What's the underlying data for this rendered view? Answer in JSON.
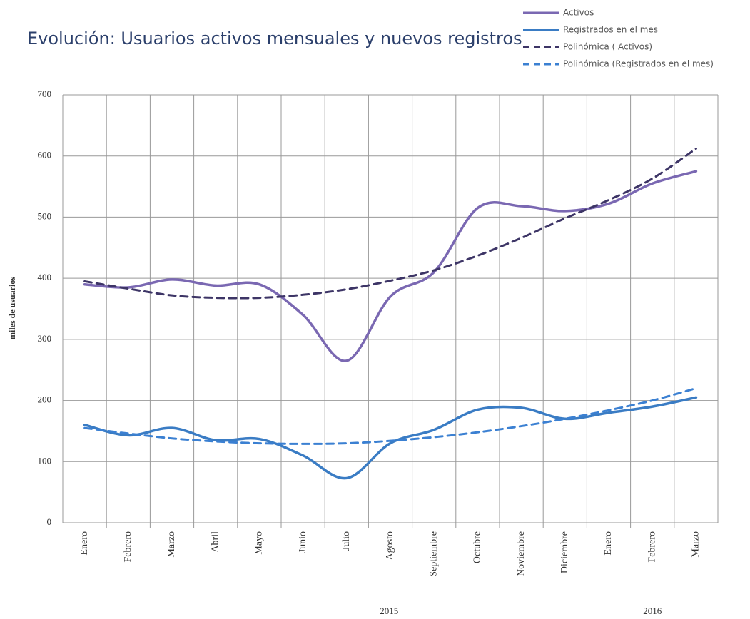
{
  "chart_data": {
    "type": "line",
    "title": "Evolución: Usuarios activos mensuales y nuevos registros",
    "y_label": "miles de usuarios",
    "categories": [
      "Enero",
      "Febrero",
      "Marzo",
      "Abril",
      "Mayo",
      "Junio",
      "Julio",
      "Agosto",
      "Septiembre",
      "Octubre",
      "Noviembre",
      "Diciembre",
      "Enero",
      "Febrero",
      "Marzo"
    ],
    "groups": [
      {
        "label": "2015",
        "count": 12
      },
      {
        "label": "2016",
        "count": 3
      }
    ],
    "ylim": [
      0,
      700
    ],
    "yticks": [
      0,
      100,
      200,
      300,
      400,
      500,
      600,
      700
    ],
    "grid": true,
    "legend": "top-right",
    "series": [
      {
        "name": "Activos",
        "color": "#7a68b2",
        "dash": false,
        "values": [
          390,
          385,
          398,
          388,
          390,
          340,
          265,
          370,
          410,
          515,
          518,
          510,
          522,
          555,
          575
        ]
      },
      {
        "name": "Registrados en el mes",
        "color": "#3a7cc4",
        "dash": false,
        "values": [
          160,
          143,
          155,
          135,
          137,
          110,
          73,
          130,
          152,
          185,
          188,
          170,
          180,
          190,
          205
        ]
      },
      {
        "name": "Polinómica ( Activos)",
        "color": "#3d3566",
        "dash": true,
        "values": [
          395,
          383,
          372,
          368,
          368,
          373,
          382,
          396,
          413,
          437,
          466,
          498,
          528,
          563,
          612
        ]
      },
      {
        "name": "Polinómica (Registrados en el mes)",
        "color": "#3b80d2",
        "dash": true,
        "values": [
          155,
          146,
          138,
          133,
          130,
          129,
          130,
          134,
          140,
          148,
          158,
          170,
          184,
          200,
          220
        ]
      }
    ]
  }
}
